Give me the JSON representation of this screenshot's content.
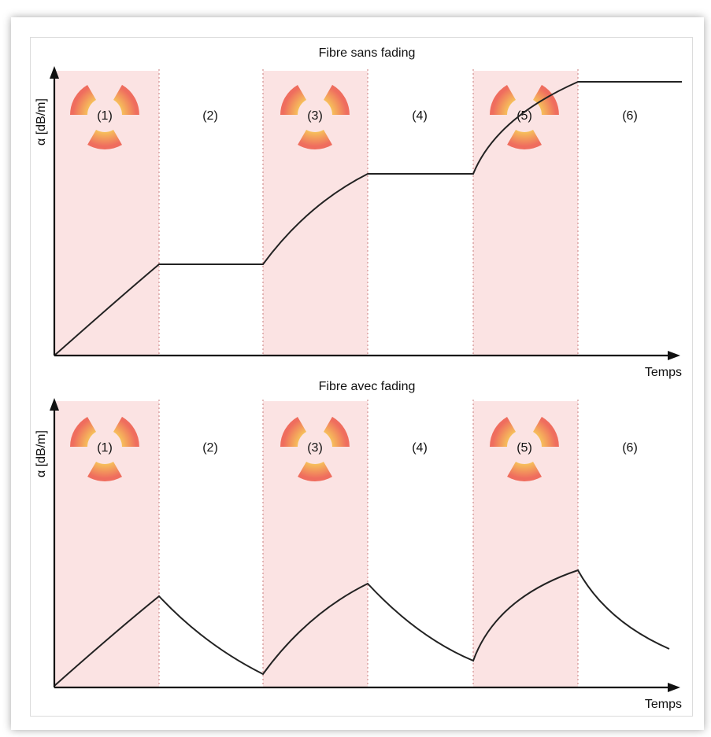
{
  "panels": [
    {
      "title": "Fibre sans fading",
      "ylabel": "α [dB/m]",
      "xlabel": "Temps",
      "phases": [
        "(1)",
        "(2)",
        "(3)",
        "(4)",
        "(5)",
        "(6)"
      ]
    },
    {
      "title": "Fibre avec fading",
      "ylabel": "α [dB/m]",
      "xlabel": "Temps",
      "phases": [
        "(1)",
        "(2)",
        "(3)",
        "(4)",
        "(5)",
        "(6)"
      ]
    }
  ],
  "irradiation_phases": [
    1,
    3,
    5
  ],
  "colors": {
    "irradiation_band": "#fbe3e3",
    "divider": "#d08f8f",
    "curve": "#222222",
    "trefoil_outer": "#f07a6a",
    "trefoil_inner": "#f8e85a"
  },
  "icons": [
    "radiation-trefoil-icon"
  ]
}
